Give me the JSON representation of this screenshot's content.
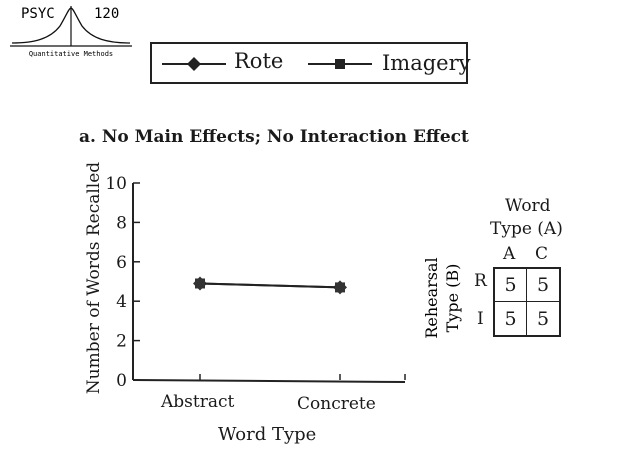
{
  "logo": {
    "course": "PSYC",
    "number": "120",
    "subtitle": "Quantitative Methods"
  },
  "chart_data": {
    "type": "line",
    "title": "a. No Main Effects; No Interaction Effect",
    "categories": [
      "Abstract",
      "Concrete"
    ],
    "xlabel": "Word Type",
    "ylabel": "Number of Words Recalled",
    "ylim": [
      0,
      10
    ],
    "yticks": [
      "0",
      "2",
      "4",
      "6",
      "8",
      "10"
    ],
    "series": [
      {
        "name": "Rote",
        "values": [
          4.9,
          4.7
        ],
        "marker": "diamond"
      },
      {
        "name": "Imagery",
        "values": [
          4.9,
          4.7
        ],
        "marker": "square"
      }
    ],
    "legend_position": "top",
    "grid": false
  },
  "cell_table": {
    "col_title_line1": "Word",
    "col_title_line2": "Type (A)",
    "col_labels": [
      "A",
      "C"
    ],
    "row_title_line1": "Rehearsal",
    "row_title_line2": "Type (B)",
    "row_labels": [
      "R",
      "I"
    ],
    "cells": [
      [
        "5",
        "5"
      ],
      [
        "5",
        "5"
      ]
    ]
  }
}
